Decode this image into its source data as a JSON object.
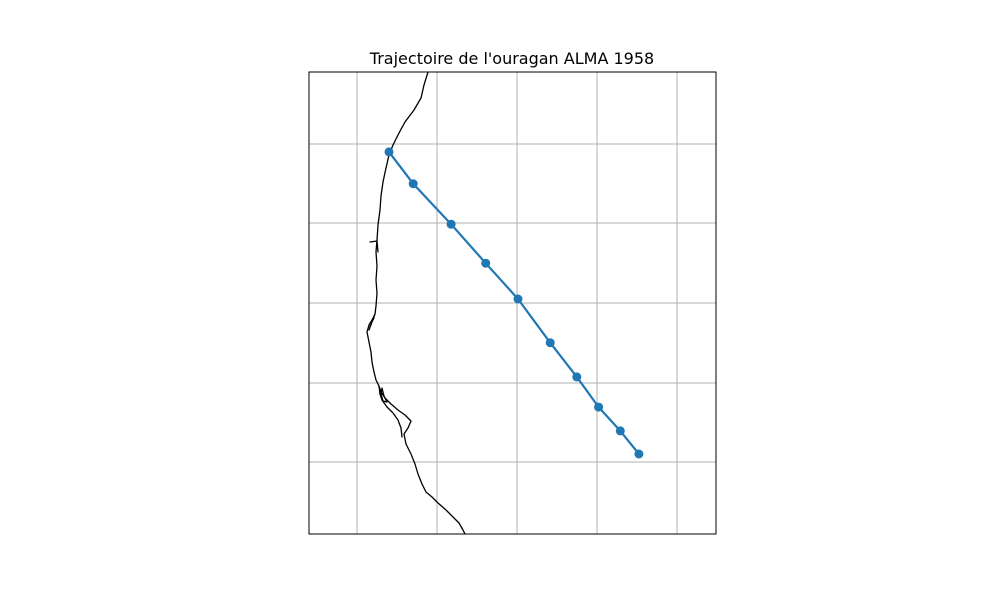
{
  "chart_data": {
    "type": "map-track",
    "title": "Trajectoire de l'ouragan ALMA 1958",
    "grid": true,
    "series": [
      {
        "color": "#1f77b4",
        "marker": "circle",
        "points": [
          {
            "lon": 0.0,
            "lat": 3.8
          },
          {
            "lon": 0.3,
            "lat": 3.4
          },
          {
            "lon": 0.77,
            "lat": 2.89
          },
          {
            "lon": 1.2,
            "lat": 2.4
          },
          {
            "lon": 1.6,
            "lat": 1.95
          },
          {
            "lon": 2.0,
            "lat": 1.4
          },
          {
            "lon": 2.33,
            "lat": 0.97
          },
          {
            "lon": 2.6,
            "lat": 0.59
          },
          {
            "lon": 2.87,
            "lat": 0.29
          },
          {
            "lon": 3.1,
            "lat": 0.0
          }
        ]
      }
    ]
  }
}
